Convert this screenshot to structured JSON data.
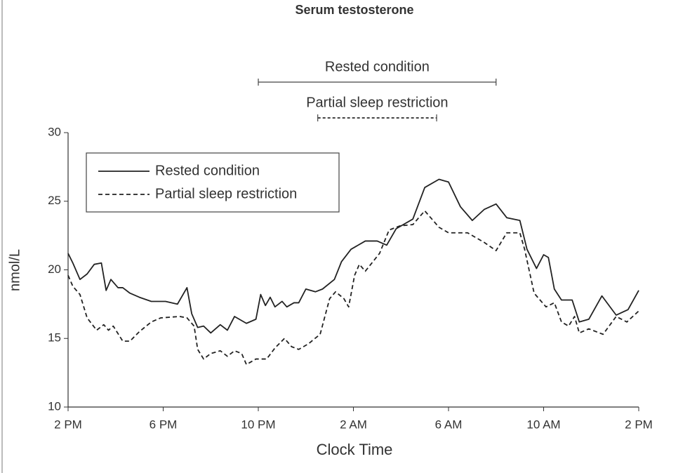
{
  "chart_data": {
    "type": "line",
    "title": "Serum testosterone",
    "x_label": "Clock Time",
    "y_label": "nmol/L",
    "xlim": [
      14,
      38
    ],
    "xticks": [
      {
        "value": 14,
        "label": "2 PM"
      },
      {
        "value": 18,
        "label": "6 PM"
      },
      {
        "value": 22,
        "label": "10 PM"
      },
      {
        "value": 26,
        "label": "2 AM"
      },
      {
        "value": 30,
        "label": "6 AM"
      },
      {
        "value": 34,
        "label": "10 AM"
      },
      {
        "value": 38,
        "label": "2 PM"
      }
    ],
    "ylim": [
      10,
      30
    ],
    "yticks": [
      10,
      15,
      20,
      25,
      30
    ],
    "legend": "upper left",
    "annotations": [
      {
        "text": "Rested condition",
        "start": 22,
        "end": 32
      },
      {
        "text": "Partial sleep restriction",
        "start": 24.5,
        "end": 29.5
      }
    ],
    "series": [
      {
        "name": "Rested condition",
        "color": "#222222",
        "style": "solid",
        "x": [
          14,
          14.2,
          14.5,
          14.8,
          15.1,
          15.4,
          15.6,
          15.8,
          16.1,
          16.3,
          16.6,
          17.0,
          17.5,
          18.1,
          18.6,
          19.0,
          19.2,
          19.45,
          19.7,
          20.0,
          20.4,
          20.7,
          21.0,
          21.5,
          21.9,
          22.1,
          22.3,
          22.5,
          22.7,
          23.0,
          23.2,
          23.5,
          23.7,
          24.0,
          24.4,
          24.7,
          25.2,
          25.5,
          25.9,
          26.5,
          27.0,
          27.4,
          27.8,
          28.5,
          29.0,
          29.6,
          30.0,
          30.5,
          31.0,
          31.5,
          32.0,
          32.45,
          33.0,
          33.3,
          33.7,
          34.0,
          34.2,
          34.45,
          34.75,
          35.2,
          35.5,
          35.9,
          36.45,
          37.05,
          37.55,
          38
        ],
        "values": [
          21.2,
          20.5,
          19.3,
          19.7,
          20.4,
          20.5,
          18.5,
          19.3,
          18.7,
          18.7,
          18.3,
          18.0,
          17.7,
          17.7,
          17.5,
          18.7,
          16.8,
          15.8,
          15.9,
          15.4,
          16.0,
          15.6,
          16.6,
          16.1,
          16.4,
          18.2,
          17.4,
          18.0,
          17.3,
          17.7,
          17.3,
          17.6,
          17.6,
          18.6,
          18.4,
          18.6,
          19.3,
          20.6,
          21.5,
          22.1,
          22.1,
          21.8,
          23.0,
          23.7,
          26.0,
          26.6,
          26.4,
          24.6,
          23.6,
          24.4,
          24.8,
          23.8,
          23.6,
          21.5,
          20.1,
          21.1,
          20.9,
          18.6,
          17.8,
          17.8,
          16.2,
          16.4,
          18.1,
          16.7,
          17.1,
          18.5
        ]
      },
      {
        "name": "Partial sleep restriction",
        "color": "#222222",
        "style": "dashed",
        "x": [
          14,
          14.2,
          14.5,
          14.8,
          15.2,
          15.5,
          15.7,
          15.9,
          16.3,
          16.6,
          17.0,
          17.5,
          17.9,
          18.7,
          19.0,
          19.3,
          19.45,
          19.7,
          20.0,
          20.4,
          20.7,
          21.0,
          21.3,
          21.5,
          21.9,
          22.35,
          22.7,
          23.1,
          23.4,
          23.7,
          24.1,
          24.6,
          25.0,
          25.25,
          25.6,
          25.8,
          26.05,
          26.25,
          26.5,
          27.1,
          27.5,
          27.95,
          28.5,
          29.0,
          29.6,
          30.0,
          30.8,
          31.5,
          32.0,
          32.45,
          33.0,
          33.2,
          33.6,
          34.1,
          34.45,
          34.75,
          35.05,
          35.3,
          35.5,
          35.9,
          36.5,
          37.05,
          37.5,
          38
        ],
        "values": [
          19.6,
          18.8,
          18.2,
          16.5,
          15.6,
          16.0,
          15.6,
          15.9,
          14.8,
          14.8,
          15.5,
          16.2,
          16.5,
          16.6,
          16.5,
          15.9,
          14.2,
          13.5,
          13.9,
          14.1,
          13.7,
          14.1,
          13.9,
          13.1,
          13.5,
          13.5,
          14.3,
          15.0,
          14.4,
          14.2,
          14.6,
          15.3,
          17.9,
          18.4,
          17.9,
          17.3,
          19.6,
          20.4,
          19.9,
          21.2,
          22.9,
          23.2,
          23.3,
          24.3,
          23.1,
          22.7,
          22.7,
          22.0,
          21.4,
          22.7,
          22.7,
          21.5,
          18.3,
          17.3,
          17.6,
          16.2,
          15.9,
          16.6,
          15.4,
          15.7,
          15.3,
          16.6,
          16.2,
          17.0
        ]
      }
    ]
  }
}
